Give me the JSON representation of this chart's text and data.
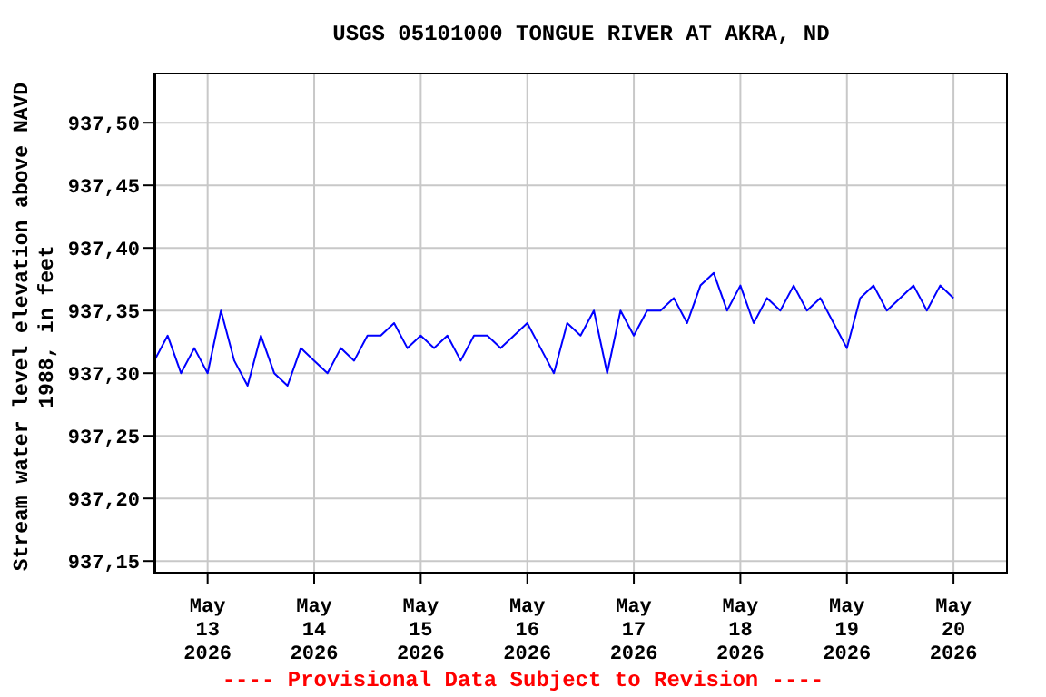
{
  "chart_data": {
    "type": "line",
    "title": "USGS 05101000 TONGUE RIVER AT AKRA, ND",
    "ylabel": "Stream water level elevation above NAVD 1988, in feet",
    "annotations": [
      "---- Provisional Data Subject to Revision ----"
    ],
    "x": [
      "2026-05-12T12:00",
      "2026-05-12T15:00",
      "2026-05-12T18:00",
      "2026-05-12T21:00",
      "2026-05-13T00:00",
      "2026-05-13T03:00",
      "2026-05-13T06:00",
      "2026-05-13T09:00",
      "2026-05-13T12:00",
      "2026-05-13T15:00",
      "2026-05-13T18:00",
      "2026-05-13T21:00",
      "2026-05-14T00:00",
      "2026-05-14T03:00",
      "2026-05-14T06:00",
      "2026-05-14T09:00",
      "2026-05-14T12:00",
      "2026-05-14T15:00",
      "2026-05-14T18:00",
      "2026-05-14T21:00",
      "2026-05-15T00:00",
      "2026-05-15T03:00",
      "2026-05-15T06:00",
      "2026-05-15T09:00",
      "2026-05-15T12:00",
      "2026-05-15T15:00",
      "2026-05-15T18:00",
      "2026-05-15T21:00",
      "2026-05-16T00:00",
      "2026-05-16T03:00",
      "2026-05-16T06:00",
      "2026-05-16T09:00",
      "2026-05-16T12:00",
      "2026-05-16T15:00",
      "2026-05-16T18:00",
      "2026-05-16T21:00",
      "2026-05-17T00:00",
      "2026-05-17T03:00",
      "2026-05-17T06:00",
      "2026-05-17T09:00",
      "2026-05-17T12:00",
      "2026-05-17T15:00",
      "2026-05-17T18:00",
      "2026-05-17T21:00",
      "2026-05-18T00:00",
      "2026-05-18T03:00",
      "2026-05-18T06:00",
      "2026-05-18T09:00",
      "2026-05-18T12:00",
      "2026-05-18T15:00",
      "2026-05-18T18:00",
      "2026-05-18T21:00",
      "2026-05-19T00:00",
      "2026-05-19T03:00",
      "2026-05-19T06:00",
      "2026-05-19T09:00",
      "2026-05-19T12:00",
      "2026-05-19T15:00",
      "2026-05-19T18:00",
      "2026-05-19T21:00",
      "2026-05-20T00:00"
    ],
    "series": [
      {
        "color": "#0000ff",
        "values": [
          937.31,
          937.33,
          937.3,
          937.32,
          937.3,
          937.35,
          937.31,
          937.29,
          937.33,
          937.3,
          937.29,
          937.32,
          937.31,
          937.3,
          937.32,
          937.31,
          937.33,
          937.33,
          937.34,
          937.32,
          937.33,
          937.32,
          937.33,
          937.31,
          937.33,
          937.33,
          937.32,
          937.33,
          937.34,
          937.32,
          937.3,
          937.34,
          937.33,
          937.35,
          937.3,
          937.35,
          937.33,
          937.35,
          937.35,
          937.36,
          937.34,
          937.37,
          937.38,
          937.35,
          937.37,
          937.34,
          937.36,
          937.35,
          937.37,
          937.35,
          937.36,
          937.34,
          937.32,
          937.36,
          937.37,
          937.35,
          937.36,
          937.37,
          937.35,
          937.37,
          937.36
        ]
      }
    ],
    "xlim": [
      "2026-05-12T12:00",
      "2026-05-20T12:15"
    ],
    "xticks": [
      {
        "value": "2026-05-13",
        "label": "May\n13\n2026"
      },
      {
        "value": "2026-05-14",
        "label": "May\n14\n2026"
      },
      {
        "value": "2026-05-15",
        "label": "May\n15\n2026"
      },
      {
        "value": "2026-05-16",
        "label": "May\n16\n2026"
      },
      {
        "value": "2026-05-17",
        "label": "May\n17\n2026"
      },
      {
        "value": "2026-05-18",
        "label": "May\n18\n2026"
      },
      {
        "value": "2026-05-19",
        "label": "May\n19\n2026"
      },
      {
        "value": "2026-05-20",
        "label": "May\n20\n2026"
      }
    ],
    "ylim": [
      937.14,
      937.54
    ],
    "yticks": [
      {
        "value": 937.15,
        "label": "937,15"
      },
      {
        "value": 937.2,
        "label": "937,20"
      },
      {
        "value": 937.25,
        "label": "937,25"
      },
      {
        "value": 937.3,
        "label": "937,30"
      },
      {
        "value": 937.35,
        "label": "937,35"
      },
      {
        "value": 937.4,
        "label": "937,40"
      },
      {
        "value": 937.45,
        "label": "937,45"
      },
      {
        "value": 937.5,
        "label": "937,50"
      }
    ],
    "grid": true,
    "legend": false,
    "marker": "none",
    "line_style": "solid"
  }
}
